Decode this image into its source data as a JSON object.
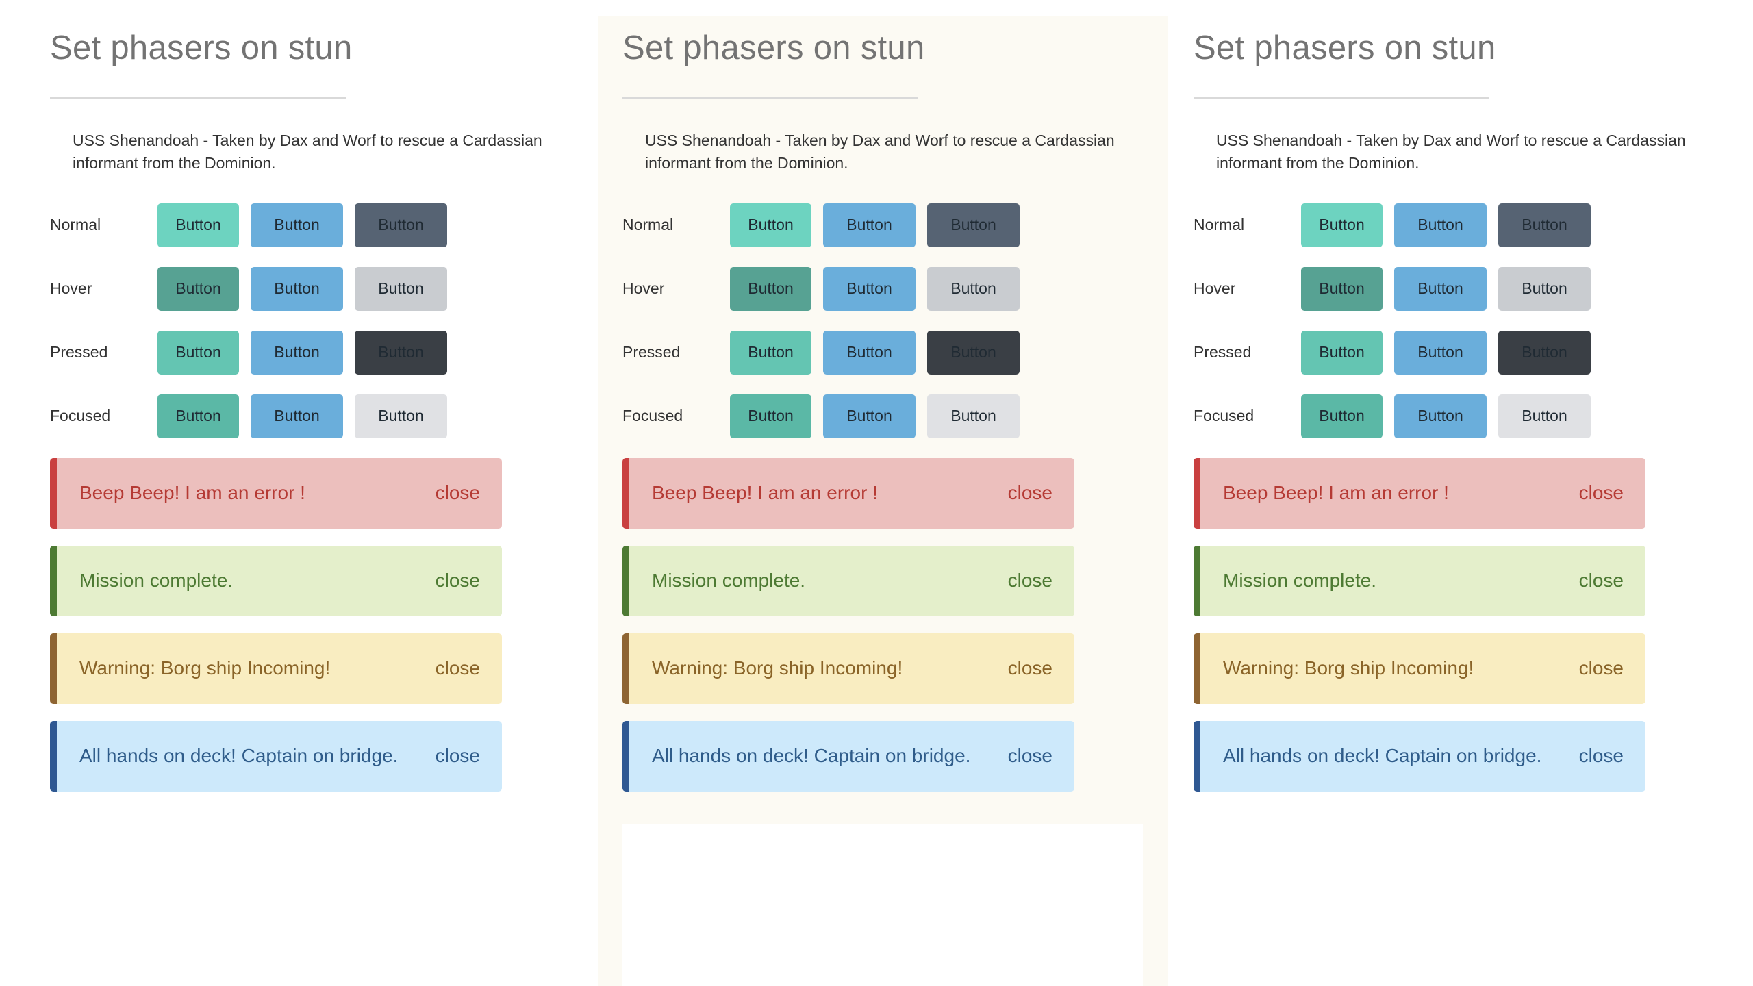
{
  "columns": [
    {
      "title": "Set phasers on stun",
      "description": "USS Shenandoah - Taken by Dax and Worf to rescue a Cardassian informant from the Dominion.",
      "rows": [
        {
          "label": "Normal",
          "buttons": [
            "Button",
            "Button",
            "Button"
          ]
        },
        {
          "label": "Hover",
          "buttons": [
            "Button",
            "Button",
            "Button"
          ]
        },
        {
          "label": "Pressed",
          "buttons": [
            "Button",
            "Button",
            "Button"
          ]
        },
        {
          "label": "Focused",
          "buttons": [
            "Button",
            "Button",
            "Button"
          ]
        }
      ],
      "alerts": [
        {
          "text": "Beep Beep! I am an error !",
          "close": "close"
        },
        {
          "text": "Mission complete.",
          "close": "close"
        },
        {
          "text": "Warning: Borg ship Incoming!",
          "close": "close"
        },
        {
          "text": "All hands on deck! Captain on bridge.",
          "close": "close"
        }
      ]
    },
    {
      "title": "Set phasers on stun",
      "description": "USS Shenandoah - Taken by Dax and Worf to rescue a Cardassian informant from the Dominion.",
      "rows": [
        {
          "label": "Normal",
          "buttons": [
            "Button",
            "Button",
            "Button"
          ]
        },
        {
          "label": "Hover",
          "buttons": [
            "Button",
            "Button",
            "Button"
          ]
        },
        {
          "label": "Pressed",
          "buttons": [
            "Button",
            "Button",
            "Button"
          ]
        },
        {
          "label": "Focused",
          "buttons": [
            "Button",
            "Button",
            "Button"
          ]
        }
      ],
      "alerts": [
        {
          "text": "Beep Beep! I am an error !",
          "close": "close"
        },
        {
          "text": "Mission complete.",
          "close": "close"
        },
        {
          "text": "Warning: Borg ship Incoming!",
          "close": "close"
        },
        {
          "text": "All hands on deck! Captain on bridge.",
          "close": "close"
        }
      ]
    },
    {
      "title": "Set phasers on stun",
      "description": "USS Shenandoah - Taken by Dax and Worf to rescue a Cardassian informant from the Dominion.",
      "rows": [
        {
          "label": "Normal",
          "buttons": [
            "Button",
            "Button",
            "Button"
          ]
        },
        {
          "label": "Hover",
          "buttons": [
            "Button",
            "Button",
            "Button"
          ]
        },
        {
          "label": "Pressed",
          "buttons": [
            "Button",
            "Button",
            "Button"
          ]
        },
        {
          "label": "Focused",
          "buttons": [
            "Button",
            "Button",
            "Button"
          ]
        }
      ],
      "alerts": [
        {
          "text": "Beep Beep! I am an error !",
          "close": "close"
        },
        {
          "text": "Mission complete.",
          "close": "close"
        },
        {
          "text": "Warning: Borg ship Incoming!",
          "close": "close"
        },
        {
          "text": "All hands on deck! Captain on bridge.",
          "close": "close"
        }
      ]
    }
  ],
  "colors": {
    "column_middle_bg": "#fcfaf3",
    "button_states": [
      [
        "#6dd3c0",
        "#6aaedb",
        "#566373"
      ],
      [
        "#57a293",
        "#6aaedb",
        "#c9ccd0"
      ],
      [
        "#64c5b2",
        "#6aaedb",
        "#3a3f45"
      ],
      [
        "#5bb8a6",
        "#6aaedb",
        "#e0e1e4"
      ]
    ],
    "alerts": [
      {
        "bg": "#ecbfbd",
        "stripe": "#c94040",
        "text": "#b53a34"
      },
      {
        "bg": "#e4efcb",
        "stripe": "#4d7a33",
        "text": "#4d7a33"
      },
      {
        "bg": "#f9edc1",
        "stripe": "#8e6432",
        "text": "#8a6428"
      },
      {
        "bg": "#cde9fb",
        "stripe": "#2f5892",
        "text": "#2f5c8a"
      }
    ]
  }
}
